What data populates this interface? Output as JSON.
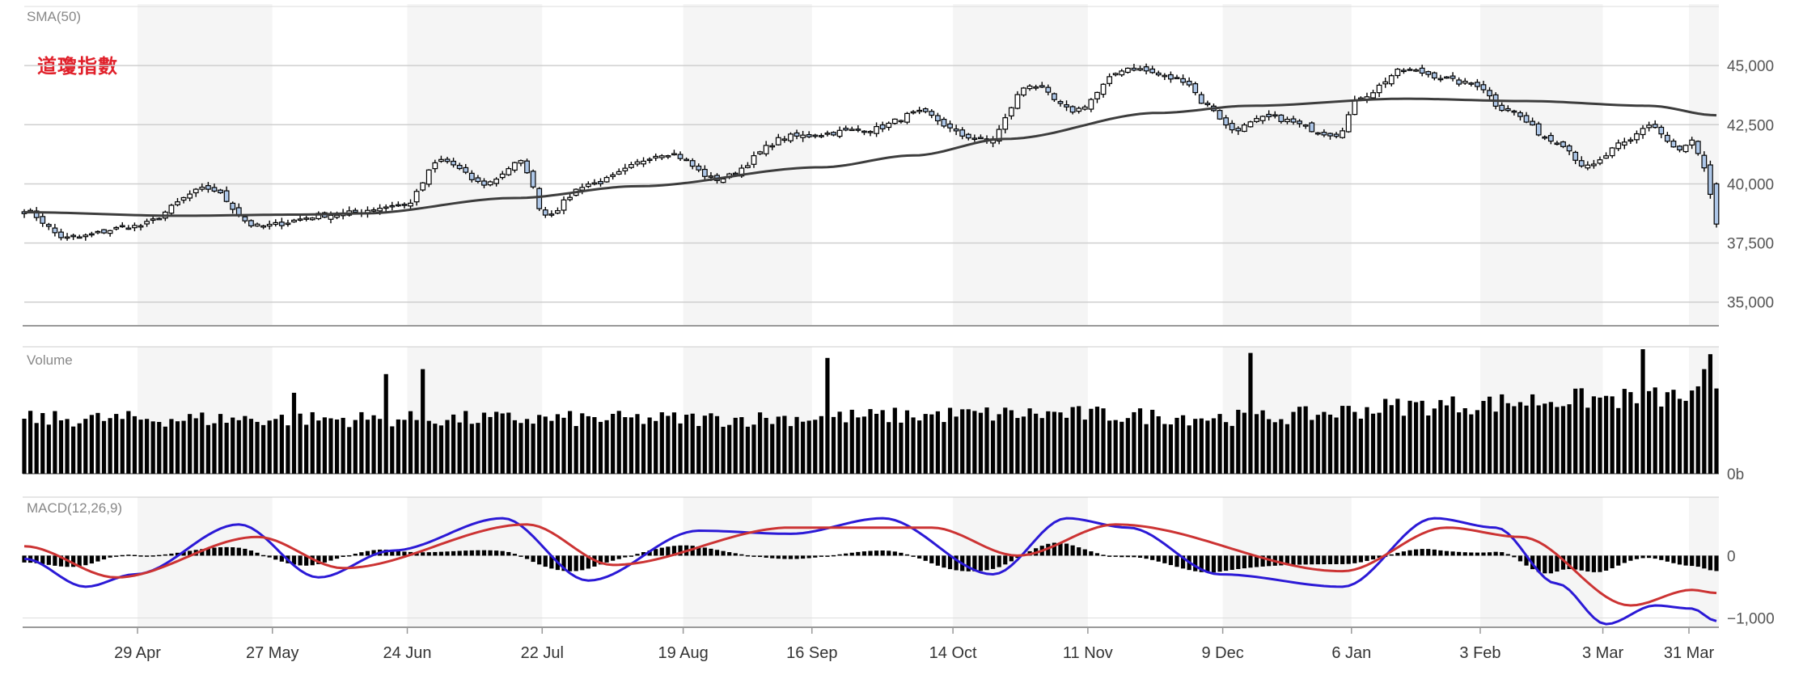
{
  "title": "道瓊指數",
  "chart_data": {
    "type": "candlestick",
    "panels": [
      {
        "name": "price",
        "indicator_label": "SMA(50)",
        "y_range": [
          34000,
          47500
        ],
        "y_ticks": [
          35000,
          37500,
          40000,
          42500,
          45000
        ],
        "y_tick_labels": [
          "35,000",
          "37,500",
          "40,000",
          "42,500",
          "45,000"
        ]
      },
      {
        "name": "volume",
        "indicator_label": "Volume",
        "y_ticks": [
          0
        ],
        "y_tick_labels": [
          "0b"
        ]
      },
      {
        "name": "macd",
        "indicator_label": "MACD(12,26,9)",
        "y_range": [
          -1150,
          900
        ],
        "y_ticks": [
          0,
          -1000
        ],
        "y_tick_labels": [
          "0",
          "−1,000"
        ]
      }
    ],
    "x_tick_labels": [
      "29 Apr",
      "27 May",
      "24 Jun",
      "22 Jul",
      "19 Aug",
      "16 Sep",
      "14 Oct",
      "11 Nov",
      "9 Dec",
      "6 Jan",
      "3 Feb",
      "3 Mar",
      "31 Mar"
    ],
    "close_keypoints": [
      {
        "i": 0,
        "v": 38850
      },
      {
        "i": 7,
        "v": 37700
      },
      {
        "i": 18,
        "v": 38200
      },
      {
        "i": 30,
        "v": 39800
      },
      {
        "i": 38,
        "v": 38200
      },
      {
        "i": 50,
        "v": 38700
      },
      {
        "i": 62,
        "v": 39100
      },
      {
        "i": 68,
        "v": 41000
      },
      {
        "i": 75,
        "v": 40000
      },
      {
        "i": 81,
        "v": 40900
      },
      {
        "i": 85,
        "v": 38700
      },
      {
        "i": 92,
        "v": 40000
      },
      {
        "i": 105,
        "v": 41300
      },
      {
        "i": 113,
        "v": 40200
      },
      {
        "i": 125,
        "v": 42000
      },
      {
        "i": 138,
        "v": 42300
      },
      {
        "i": 146,
        "v": 43000
      },
      {
        "i": 154,
        "v": 42000
      },
      {
        "i": 157,
        "v": 41800
      },
      {
        "i": 164,
        "v": 44200
      },
      {
        "i": 171,
        "v": 43100
      },
      {
        "i": 180,
        "v": 44900
      },
      {
        "i": 189,
        "v": 44400
      },
      {
        "i": 193,
        "v": 43300
      },
      {
        "i": 197,
        "v": 42300
      },
      {
        "i": 203,
        "v": 42800
      },
      {
        "i": 214,
        "v": 42100
      },
      {
        "i": 218,
        "v": 43700
      },
      {
        "i": 225,
        "v": 44800
      },
      {
        "i": 237,
        "v": 44200
      },
      {
        "i": 241,
        "v": 43200
      },
      {
        "i": 250,
        "v": 41800
      },
      {
        "i": 255,
        "v": 40700
      },
      {
        "i": 261,
        "v": 41700
      },
      {
        "i": 265,
        "v": 42500
      },
      {
        "i": 270,
        "v": 41400
      },
      {
        "i": 272,
        "v": 41800
      },
      {
        "i": 274,
        "v": 40600
      },
      {
        "i": 276,
        "v": 38300
      }
    ],
    "sma_keypoints": [
      {
        "i": 0,
        "v": 38800
      },
      {
        "i": 25,
        "v": 38650
      },
      {
        "i": 45,
        "v": 38700
      },
      {
        "i": 55,
        "v": 38750
      },
      {
        "i": 80,
        "v": 39400
      },
      {
        "i": 100,
        "v": 39900
      },
      {
        "i": 130,
        "v": 40700
      },
      {
        "i": 145,
        "v": 41200
      },
      {
        "i": 160,
        "v": 41900
      },
      {
        "i": 185,
        "v": 43000
      },
      {
        "i": 200,
        "v": 43300
      },
      {
        "i": 225,
        "v": 43600
      },
      {
        "i": 245,
        "v": 43500
      },
      {
        "i": 265,
        "v": 43300
      },
      {
        "i": 276,
        "v": 42900
      }
    ],
    "volume_keypoints": [
      {
        "i": 0,
        "v": 0.44
      },
      {
        "i": 40,
        "v": 0.44
      },
      {
        "i": 110,
        "v": 0.44
      },
      {
        "i": 165,
        "v": 0.48
      },
      {
        "i": 200,
        "v": 0.45
      },
      {
        "i": 230,
        "v": 0.55
      },
      {
        "i": 255,
        "v": 0.6
      },
      {
        "i": 276,
        "v": 0.62
      }
    ],
    "volume_spikes": [
      {
        "i": 59,
        "v": 0.8
      },
      {
        "i": 65,
        "v": 0.84
      },
      {
        "i": 44,
        "v": 0.65
      },
      {
        "i": 131,
        "v": 0.93
      },
      {
        "i": 200,
        "v": 0.97
      },
      {
        "i": 264,
        "v": 1.0
      },
      {
        "i": 275,
        "v": 0.96
      },
      {
        "i": 274,
        "v": 0.84
      }
    ],
    "macd_keypoints": [
      {
        "i": 0,
        "v": -50
      },
      {
        "i": 10,
        "v": -500
      },
      {
        "i": 18,
        "v": -300
      },
      {
        "i": 35,
        "v": 500
      },
      {
        "i": 48,
        "v": -350
      },
      {
        "i": 60,
        "v": 80
      },
      {
        "i": 78,
        "v": 600
      },
      {
        "i": 92,
        "v": -400
      },
      {
        "i": 110,
        "v": 400
      },
      {
        "i": 125,
        "v": 350
      },
      {
        "i": 140,
        "v": 600
      },
      {
        "i": 158,
        "v": -300
      },
      {
        "i": 170,
        "v": 600
      },
      {
        "i": 180,
        "v": 450
      },
      {
        "i": 195,
        "v": -300
      },
      {
        "i": 215,
        "v": -500
      },
      {
        "i": 230,
        "v": 600
      },
      {
        "i": 240,
        "v": 450
      },
      {
        "i": 250,
        "v": -450
      },
      {
        "i": 258,
        "v": -1100
      },
      {
        "i": 266,
        "v": -800
      },
      {
        "i": 272,
        "v": -850
      },
      {
        "i": 276,
        "v": -1050
      }
    ],
    "signal_keypoints": [
      {
        "i": 0,
        "v": 150
      },
      {
        "i": 15,
        "v": -350
      },
      {
        "i": 38,
        "v": 300
      },
      {
        "i": 52,
        "v": -200
      },
      {
        "i": 82,
        "v": 500
      },
      {
        "i": 96,
        "v": -150
      },
      {
        "i": 125,
        "v": 450
      },
      {
        "i": 148,
        "v": 450
      },
      {
        "i": 162,
        "v": 0
      },
      {
        "i": 178,
        "v": 500
      },
      {
        "i": 215,
        "v": -250
      },
      {
        "i": 232,
        "v": 450
      },
      {
        "i": 244,
        "v": 300
      },
      {
        "i": 262,
        "v": -800
      },
      {
        "i": 272,
        "v": -550
      },
      {
        "i": 276,
        "v": -600
      }
    ],
    "series_colors": {
      "candle_up_fill": "#ffffff",
      "candle_down_fill": "#aec7e8",
      "candle_outline": "#000000",
      "sma": "#3d3d3d",
      "volume": "#000000",
      "macd": "#2b19d6",
      "signal": "#cc3333",
      "histogram": "#000000"
    }
  }
}
